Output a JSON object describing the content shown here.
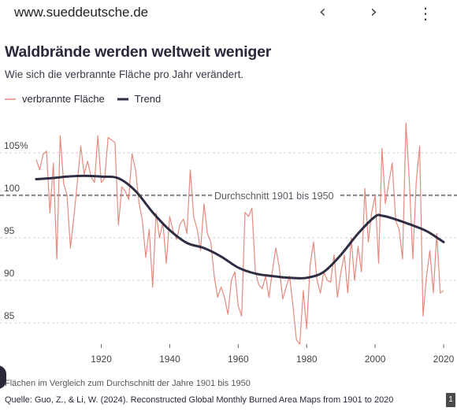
{
  "browser": {
    "url": "www.sueddeutsche.de",
    "back_icon": "chevron-left",
    "forward_icon": "chevron-right",
    "menu_icon": "vertical-dots"
  },
  "page_badge": "1",
  "colors": {
    "series": "#e58a7f",
    "trend": "#2e2e42",
    "mean_line": "#8c8c96",
    "grid": "#d0d0d4",
    "text": "#29293a"
  },
  "chart_data": {
    "type": "line",
    "title": "Waldbrände werden weltweit weniger",
    "subtitle": "Wie sich die verbrannte Fläche pro Jahr verändert.",
    "ylim": [
      80,
      110
    ],
    "xlim": [
      1901,
      2022
    ],
    "y_ticks": [
      85,
      90,
      95,
      100,
      105
    ],
    "y_tick_labels": [
      "85",
      "90",
      "95",
      "100",
      "105%"
    ],
    "x_ticks": [
      1920,
      1940,
      1960,
      1980,
      2000,
      2020
    ],
    "x_tick_labels": [
      "1920",
      "1940",
      "1960",
      "1980",
      "2000",
      "2020"
    ],
    "grid": "horizontal dashed",
    "legend": {
      "position": "top-left",
      "series_label": "verbrannte Fläche",
      "trend_label": "Trend"
    },
    "reference_line": {
      "value": 100,
      "label": "Durchschnitt 1901 bis 1950"
    },
    "note": "Flächen im Vergleich zum Durchschnitt der Jahre 1901 bis 1950",
    "source": "Quelle: Guo, Z., & Li, W. (2024). Reconstructed Global Monthly Burned Area Maps from 1901 to 2020",
    "series": [
      {
        "name": "verbrannte Fläche",
        "x": [
          1901,
          1902,
          1903,
          1904,
          1905,
          1906,
          1907,
          1908,
          1909,
          1910,
          1911,
          1912,
          1913,
          1914,
          1915,
          1916,
          1917,
          1918,
          1919,
          1920,
          1921,
          1922,
          1923,
          1924,
          1925,
          1926,
          1927,
          1928,
          1929,
          1930,
          1931,
          1932,
          1933,
          1934,
          1935,
          1936,
          1937,
          1938,
          1939,
          1940,
          1941,
          1942,
          1943,
          1944,
          1945,
          1946,
          1947,
          1948,
          1949,
          1950,
          1951,
          1952,
          1953,
          1954,
          1955,
          1956,
          1957,
          1958,
          1959,
          1960,
          1961,
          1962,
          1963,
          1964,
          1965,
          1966,
          1967,
          1968,
          1969,
          1970,
          1971,
          1972,
          1973,
          1974,
          1975,
          1976,
          1977,
          1978,
          1979,
          1980,
          1981,
          1982,
          1983,
          1984,
          1985,
          1986,
          1987,
          1988,
          1989,
          1990,
          1991,
          1992,
          1993,
          1994,
          1995,
          1996,
          1997,
          1998,
          1999,
          2000,
          2001,
          2002,
          2003,
          2004,
          2005,
          2006,
          2007,
          2008,
          2009,
          2010,
          2011,
          2012,
          2013,
          2014,
          2015,
          2016,
          2017,
          2018,
          2019,
          2020
        ],
        "values": [
          104.2,
          103.0,
          104.8,
          105.2,
          97.9,
          103.8,
          92.5,
          107.0,
          101.4,
          100.0,
          93.8,
          97.5,
          101.5,
          105.8,
          102.5,
          104.0,
          102.2,
          101.5,
          107.0,
          101.5,
          102.0,
          106.8,
          106.5,
          106.2,
          96.5,
          101.0,
          100.5,
          99.5,
          104.9,
          103.0,
          99.2,
          97.0,
          92.7,
          96.0,
          89.2,
          97.9,
          95.0,
          96.8,
          92.0,
          97.5,
          95.8,
          94.8,
          96.6,
          97.2,
          95.5,
          103.0,
          97.5,
          96.0,
          93.5,
          99.0,
          95.5,
          94.5,
          90.5,
          88.0,
          89.2,
          88.0,
          86.0,
          90.0,
          91.0,
          87.0,
          85.8,
          98.0,
          97.5,
          98.5,
          91.0,
          89.5,
          89.0,
          90.5,
          88.0,
          91.2,
          93.8,
          91.5,
          87.8,
          89.2,
          90.5,
          87.0,
          83.0,
          82.5,
          88.8,
          84.3,
          91.8,
          94.5,
          90.0,
          88.5,
          91.0,
          90.0,
          89.8,
          93.0,
          88.0,
          91.0,
          93.0,
          88.5,
          95.0,
          90.0,
          94.0,
          91.0,
          100.8,
          94.5,
          98.0,
          100.0,
          92.0,
          105.5,
          99.0,
          101.5,
          103.8,
          97.0,
          96.0,
          92.5,
          108.5,
          101.5,
          92.5,
          101.5,
          105.8,
          85.8,
          90.5,
          93.5,
          88.5,
          95.5,
          88.5,
          88.8
        ]
      }
    ],
    "trend": {
      "name": "Trend",
      "x": [
        1901,
        1905,
        1910,
        1915,
        1920,
        1925,
        1930,
        1935,
        1940,
        1945,
        1950,
        1955,
        1960,
        1965,
        1970,
        1975,
        1980,
        1985,
        1990,
        1995,
        2000,
        2002,
        2005,
        2010,
        2015,
        2020
      ],
      "values": [
        101.9,
        102.0,
        102.2,
        102.3,
        102.2,
        102.0,
        100.5,
        98.0,
        95.9,
        94.4,
        93.8,
        92.8,
        91.5,
        90.8,
        90.5,
        90.3,
        90.3,
        91.0,
        93.0,
        95.5,
        97.5,
        97.6,
        97.3,
        96.6,
        95.8,
        94.5
      ]
    }
  }
}
